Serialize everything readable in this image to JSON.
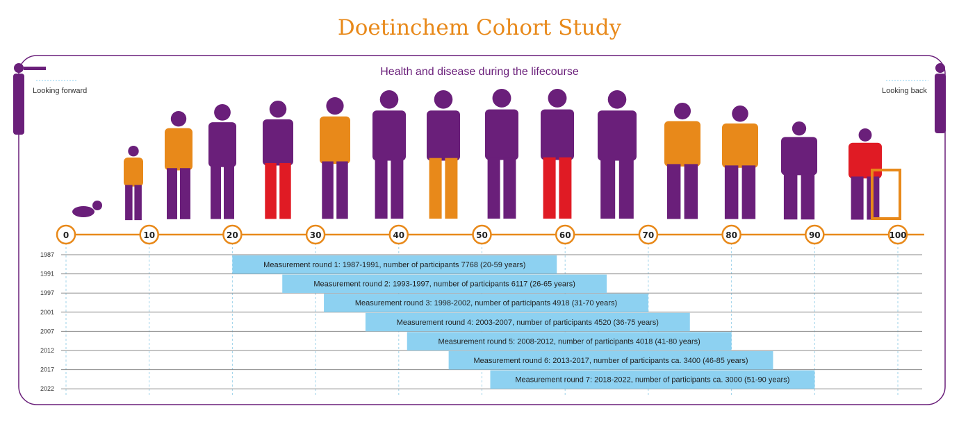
{
  "title": "Doetinchem Cohort Study",
  "subtitle": "Health and disease during the lifecourse",
  "looking_forward": "Looking forward",
  "looking_back": "Looking back",
  "colors": {
    "purple": "#6a1f7a",
    "orange": "#e8891a",
    "blue": "#8dd1f1",
    "red": "#e01b24"
  },
  "age_axis": {
    "ticks": [
      "0",
      "10",
      "20",
      "30",
      "40",
      "50",
      "60",
      "70",
      "80",
      "90",
      "100"
    ]
  },
  "years": [
    "1987",
    "1991",
    "1997",
    "2001",
    "2007",
    "2012",
    "2017",
    "2022"
  ],
  "rounds": [
    {
      "label": "Measurement round 1: 1987-1991, number of participants 7768 (20-59 years)",
      "age_from": 20,
      "age_to": 59
    },
    {
      "label": "Measurement round 2: 1993-1997, number of participants 6117 (26-65 years)",
      "age_from": 26,
      "age_to": 65
    },
    {
      "label": "Measurement round 3: 1998-2002, number of participants 4918 (31-70 years)",
      "age_from": 31,
      "age_to": 70
    },
    {
      "label": "Measurement round 4: 2003-2007, number of participants 4520 (36-75 years)",
      "age_from": 36,
      "age_to": 75
    },
    {
      "label": "Measurement round 5: 2008-2012, number of participants 4018 (41-80 years)",
      "age_from": 41,
      "age_to": 80
    },
    {
      "label": "Measurement round 6: 2013-2017, number of participants ca. 3400 (46-85 years)",
      "age_from": 46,
      "age_to": 85
    },
    {
      "label": "Measurement round 7: 2018-2022, number of participants ca. 3000 (51-90 years)",
      "age_from": 51,
      "age_to": 90
    }
  ]
}
